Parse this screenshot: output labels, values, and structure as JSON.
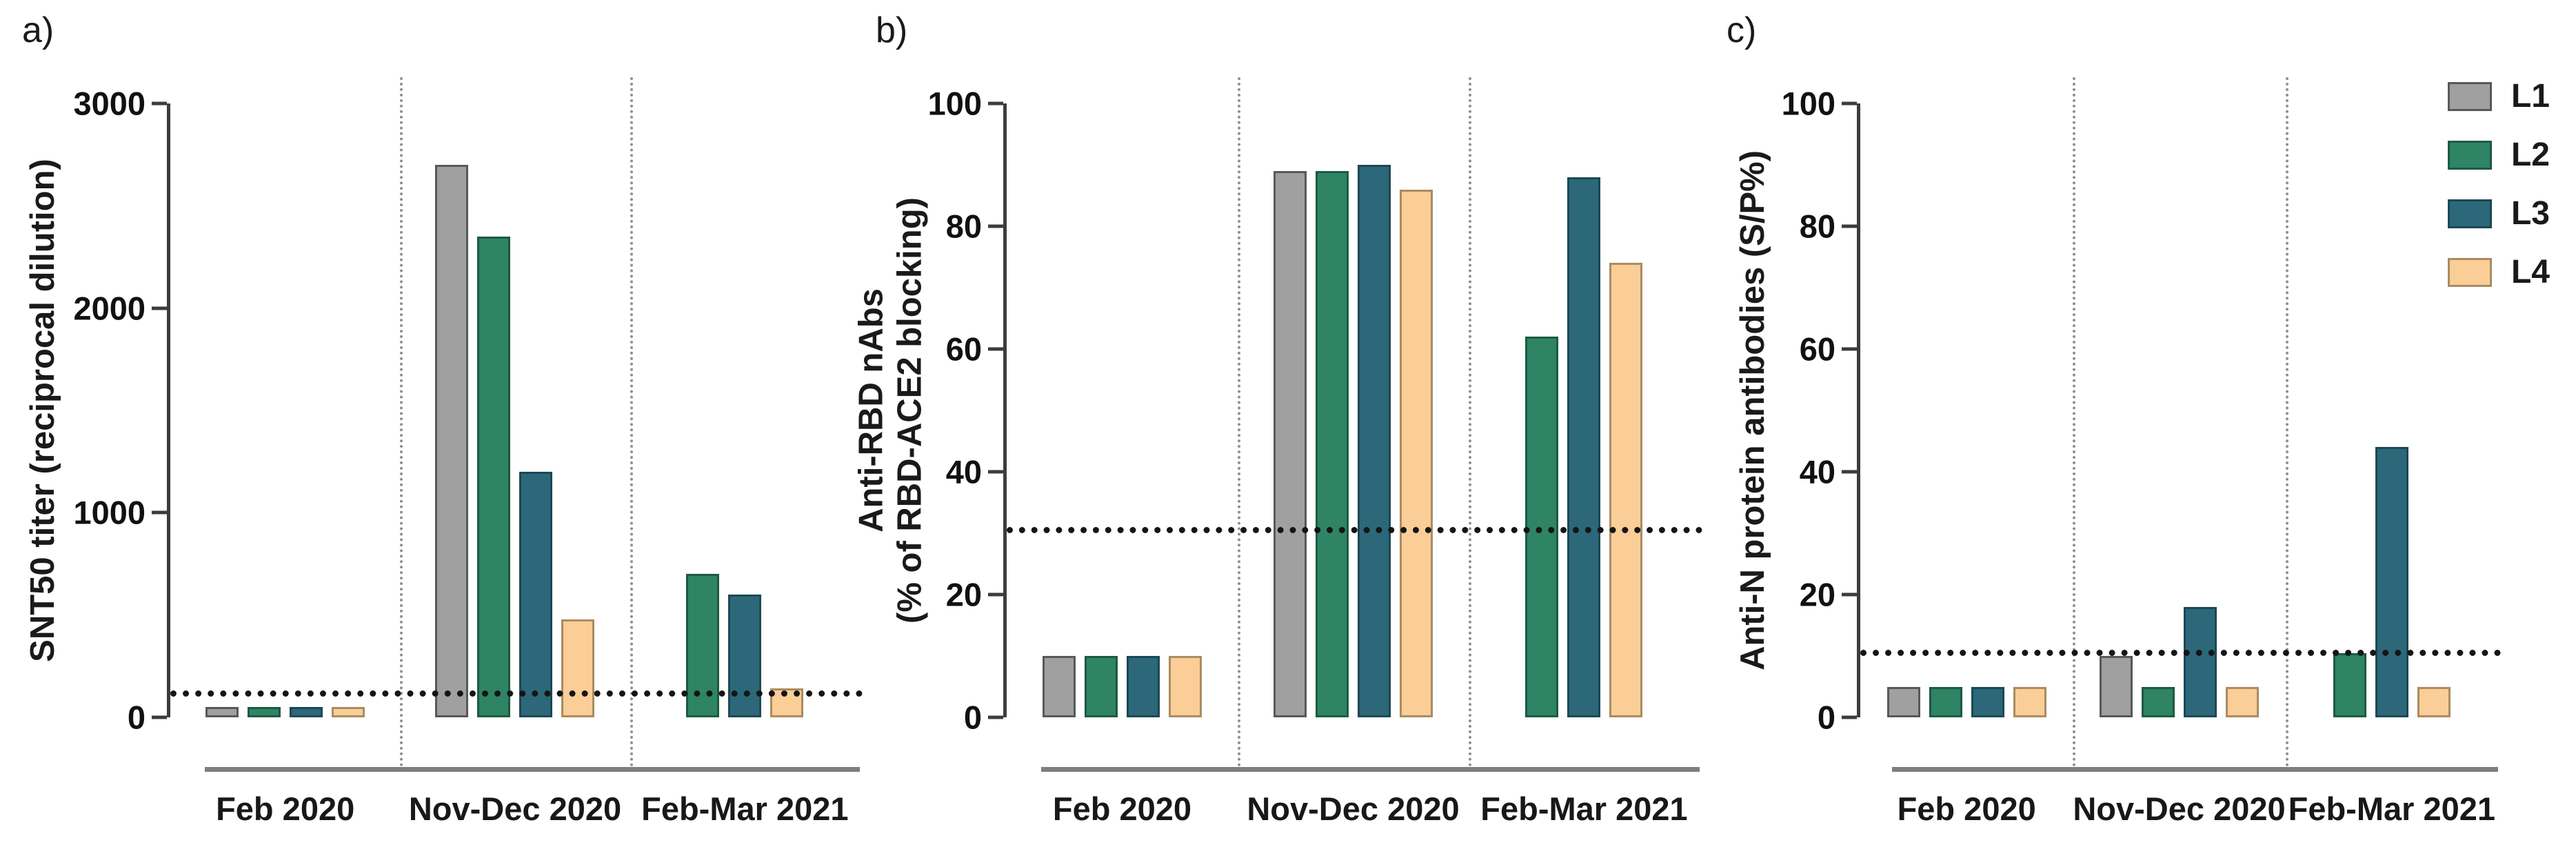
{
  "panel_letters": [
    "a)",
    "b)",
    "c)"
  ],
  "legend": {
    "position": "top-right",
    "items": [
      {
        "label": "L1",
        "fill": "#a0a0a0",
        "border": "#58585a"
      },
      {
        "label": "L2",
        "fill": "#2e8465",
        "border": "#1d5a42"
      },
      {
        "label": "L3",
        "fill": "#2c6879",
        "border": "#1b4855"
      },
      {
        "label": "L4",
        "fill": "#fbcd97",
        "border": "#a98c60"
      }
    ]
  },
  "chart_data": [
    {
      "type": "bar",
      "letter": "a)",
      "title": "",
      "xlabel": "",
      "ylabel_lines": [
        "SNT50 titer (reciprocal dilution)"
      ],
      "categories": [
        "Feb 2020",
        "Nov-Dec 2020",
        "Feb-Mar 2021"
      ],
      "series": [
        {
          "name": "L1",
          "values": [
            50,
            2700,
            null
          ]
        },
        {
          "name": "L2",
          "values": [
            50,
            2350,
            700
          ]
        },
        {
          "name": "L3",
          "values": [
            50,
            1200,
            600
          ]
        },
        {
          "name": "L4",
          "values": [
            50,
            480,
            140
          ]
        }
      ],
      "ylim": [
        0,
        3000
      ],
      "yticks": [
        0,
        1000,
        2000,
        3000
      ],
      "threshold": 100,
      "grid": false,
      "legend_position": "none"
    },
    {
      "type": "bar",
      "letter": "b)",
      "title": "",
      "xlabel": "",
      "ylabel_lines": [
        "Anti-RBD nAbs",
        "(% of RBD-ACE2 blocking)"
      ],
      "categories": [
        "Feb 2020",
        "Nov-Dec 2020",
        "Feb-Mar 2021"
      ],
      "series": [
        {
          "name": "L1",
          "values": [
            10,
            89,
            null
          ]
        },
        {
          "name": "L2",
          "values": [
            10,
            89,
            62
          ]
        },
        {
          "name": "L3",
          "values": [
            10,
            90,
            88
          ]
        },
        {
          "name": "L4",
          "values": [
            10,
            86,
            74
          ]
        }
      ],
      "ylim": [
        0,
        100
      ],
      "yticks": [
        0,
        20,
        40,
        60,
        80,
        100
      ],
      "threshold": 30,
      "grid": false,
      "legend_position": "none"
    },
    {
      "type": "bar",
      "letter": "c)",
      "title": "",
      "xlabel": "",
      "ylabel_lines": [
        "Anti-N protein antibodies (S/P%)"
      ],
      "categories": [
        "Feb 2020",
        "Nov-Dec 2020",
        "Feb-Mar 2021"
      ],
      "series": [
        {
          "name": "L1",
          "values": [
            5,
            10,
            null
          ]
        },
        {
          "name": "L2",
          "values": [
            5,
            5,
            10.5
          ]
        },
        {
          "name": "L3",
          "values": [
            5,
            18,
            44
          ]
        },
        {
          "name": "L4",
          "values": [
            5,
            5,
            5
          ]
        }
      ],
      "ylim": [
        0,
        100
      ],
      "yticks": [
        0,
        20,
        40,
        60,
        80,
        100
      ],
      "threshold": 10,
      "grid": false,
      "legend_position": "top-right"
    }
  ]
}
